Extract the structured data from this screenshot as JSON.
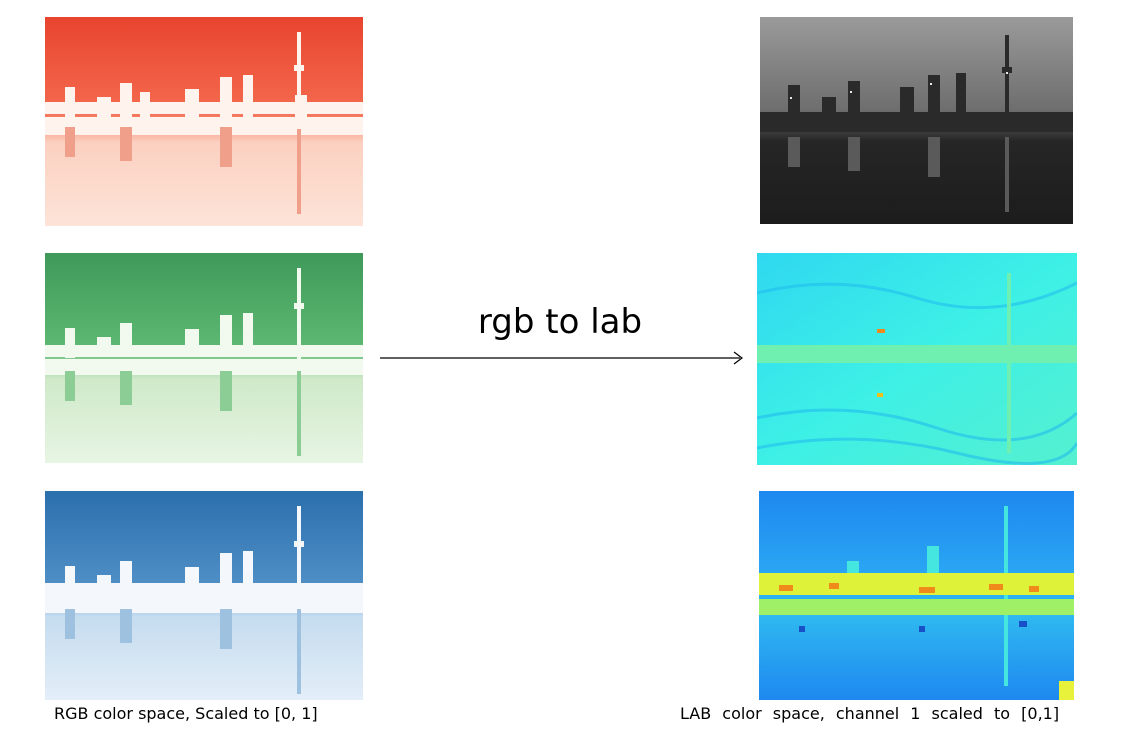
{
  "arrow": {
    "label": "rgb to lab"
  },
  "captions": {
    "left": "RGB color space, Scaled to [0, 1]",
    "right": "LAB color space, channel 1 scaled to [0,1]"
  },
  "panels": [
    {
      "name": "red-channel-image",
      "colormap": "Reds"
    },
    {
      "name": "green-channel-image",
      "colormap": "Greens"
    },
    {
      "name": "blue-channel-image",
      "colormap": "Blues"
    },
    {
      "name": "lab-channel-0-image",
      "colormap": "gray"
    },
    {
      "name": "lab-channel-1-image",
      "colormap": "jet"
    },
    {
      "name": "lab-channel-2-image",
      "colormap": "jet"
    }
  ],
  "colors": {
    "red_dark": "#e8442e",
    "red_light": "#fde4d8",
    "green_dark": "#2f8f4b",
    "green_light": "#e7f5e3",
    "blue_dark": "#2b6fad",
    "blue_light": "#e3eef8",
    "gray_light": "#9a9a9a",
    "gray_dark": "#1c1c1c",
    "jet_cyan": "#3df0e6",
    "jet_blue": "#1e88f0",
    "jet_yellow": "#e9f23a",
    "jet_orange": "#f08a1a"
  }
}
